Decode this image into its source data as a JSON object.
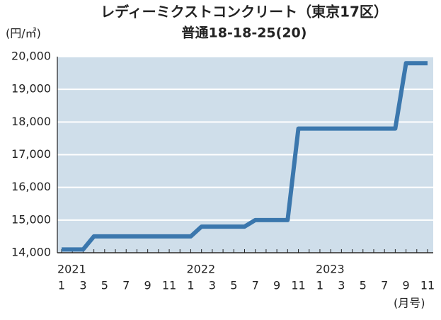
{
  "chart_data": {
    "type": "line",
    "title": "レディーミクストコンクリート（東京17区）",
    "subtitle": "普通18-18-25(20)",
    "y_unit": "(円/㎥)",
    "x_unit": "(月号)",
    "years": [
      "2021",
      "2022",
      "2023"
    ],
    "categories": [
      "1",
      null,
      "3",
      null,
      "5",
      null,
      "7",
      null,
      "9",
      null,
      "11",
      null,
      "1",
      null,
      "3",
      null,
      "5",
      null,
      "7",
      null,
      "9",
      null,
      "11",
      null,
      "1",
      null,
      "3",
      null,
      "5",
      null,
      "7",
      null,
      "9",
      null,
      "11"
    ],
    "series": [
      {
        "color": "#3b77ad",
        "values": [
          14100,
          14100,
          14100,
          14500,
          14500,
          14500,
          14500,
          14500,
          14500,
          14500,
          14500,
          14500,
          14500,
          14800,
          14800,
          14800,
          14800,
          14800,
          15000,
          15000,
          15000,
          15000,
          17800,
          17800,
          17800,
          17800,
          17800,
          17800,
          17800,
          17800,
          17800,
          17800,
          19800,
          19800,
          19800
        ]
      }
    ],
    "ylim": [
      14000,
      20000
    ],
    "yticks": [
      {
        "value": 14000,
        "label": "14,000"
      },
      {
        "value": 15000,
        "label": "15,000"
      },
      {
        "value": 16000,
        "label": "16,000"
      },
      {
        "value": 17000,
        "label": "17,000"
      },
      {
        "value": 18000,
        "label": "18,000"
      },
      {
        "value": 19000,
        "label": "19,000"
      },
      {
        "value": 20000,
        "label": "20,000"
      }
    ],
    "grid": true
  }
}
